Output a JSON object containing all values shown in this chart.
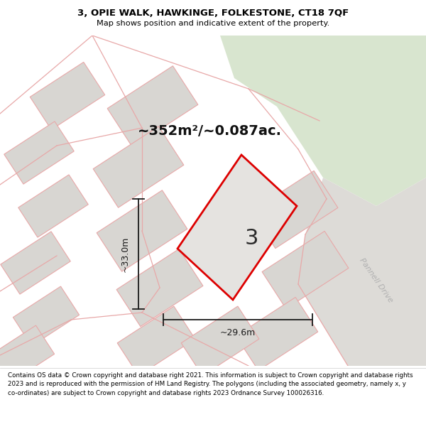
{
  "title_line1": "3, OPIE WALK, HAWKINGE, FOLKESTONE, CT18 7QF",
  "title_line2": "Map shows position and indicative extent of the property.",
  "area_text": "~352m²/~0.087ac.",
  "width_label": "~29.6m",
  "height_label": "~33.0m",
  "plot_number": "3",
  "road_label": "Pannell Drive",
  "footer_text": "Contains OS data © Crown copyright and database right 2021. This information is subject to Crown copyright and database rights 2023 and is reproduced with the permission of HM Land Registry. The polygons (including the associated geometry, namely x, y co-ordinates) are subject to Crown copyright and database rights 2023 Ordnance Survey 100026316.",
  "map_bg": "#edecea",
  "plot_fill": "#e5e3e0",
  "plot_edge": "#dd0000",
  "neighbor_fill": "#d8d6d2",
  "neighbor_edge": "#e8a8a8",
  "green_fill": "#d8e5cf",
  "header_bg": "#ffffff",
  "footer_bg": "#ffffff",
  "dim_color": "#1a1a1a",
  "road_label_color": "#b0b0b0",
  "title_fontsize": 9.5,
  "subtitle_fontsize": 8.2,
  "area_fontsize": 14,
  "dim_fontsize": 9,
  "plot_num_fontsize": 22,
  "road_fontsize": 8,
  "footer_fontsize": 6.3
}
